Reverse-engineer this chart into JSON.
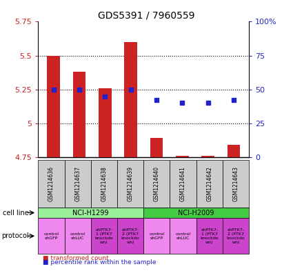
{
  "title": "GDS5391 / 7960559",
  "samples": [
    "GSM1214636",
    "GSM1214637",
    "GSM1214638",
    "GSM1214639",
    "GSM1214640",
    "GSM1214641",
    "GSM1214642",
    "GSM1214643"
  ],
  "bar_values": [
    5.5,
    5.38,
    5.26,
    5.6,
    4.89,
    4.76,
    4.76,
    4.84
  ],
  "bar_baseline": 4.75,
  "percentile_values": [
    50,
    50,
    45,
    50,
    42,
    40,
    40,
    42
  ],
  "ylim_left": [
    4.75,
    5.75
  ],
  "ylim_right": [
    0,
    100
  ],
  "yticks_left": [
    4.75,
    5.0,
    5.25,
    5.5,
    5.75
  ],
  "ytick_labels_left": [
    "4.75",
    "5",
    "5.25",
    "5.5",
    "5.75"
  ],
  "yticks_right": [
    0,
    25,
    50,
    75,
    100
  ],
  "ytick_labels_right": [
    "0",
    "25",
    "50",
    "75",
    "100%"
  ],
  "dotted_lines": [
    5.5,
    5.25,
    5.0
  ],
  "bar_color": "#cc2222",
  "percentile_color": "#2222cc",
  "cell_line_groups": [
    {
      "label": "NCI-H1299",
      "start": 0,
      "end": 4,
      "color": "#99ee99"
    },
    {
      "label": "NCI-H2009",
      "start": 4,
      "end": 8,
      "color": "#44cc44"
    }
  ],
  "protocols": [
    {
      "label": "control\nshGFP",
      "color": "#ee88ee"
    },
    {
      "label": "control\nshLUC",
      "color": "#ee88ee"
    },
    {
      "label": "shPTK7-\n1 (PTK7\nknockdo\nwn)",
      "color": "#cc44cc"
    },
    {
      "label": "shPTK7-\n2 (PTK7\nknockdo\nwn)",
      "color": "#cc44cc"
    },
    {
      "label": "control\nshGFP",
      "color": "#ee88ee"
    },
    {
      "label": "control\nshLUC",
      "color": "#ee88ee"
    },
    {
      "label": "shPTK7-\n1 (PTK7\nknockdo\nwn)",
      "color": "#cc44cc"
    },
    {
      "label": "shPTK7-\n2 (PTK7\nknockdo\nwn)",
      "color": "#cc44cc"
    }
  ],
  "legend_bar_label": "transformed count",
  "legend_pct_label": "percentile rank within the sample",
  "sample_box_color": "#cccccc",
  "left_label_color": "#cc2222",
  "right_label_color": "#2222cc"
}
